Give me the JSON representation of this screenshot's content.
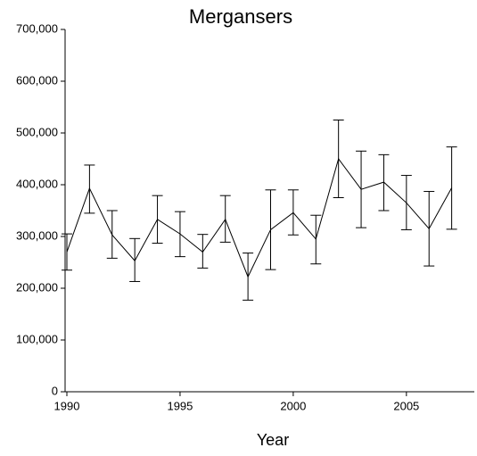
{
  "chart_data": {
    "type": "line",
    "title": "Mergansers",
    "x_label": "Year",
    "x": [
      1990,
      1991,
      1992,
      1993,
      1994,
      1995,
      1996,
      1997,
      1998,
      1999,
      2000,
      2001,
      2002,
      2003,
      2004,
      2005,
      2006,
      2007
    ],
    "series": [
      {
        "color": "#000000",
        "values": [
          270000,
          393000,
          303000,
          253000,
          333000,
          305000,
          270000,
          333000,
          222000,
          313000,
          346000,
          295000,
          450000,
          391000,
          405000,
          365000,
          315000,
          394000
        ],
        "lower": [
          235000,
          345000,
          258000,
          213000,
          287000,
          261000,
          239000,
          289000,
          177000,
          236000,
          303000,
          247000,
          375000,
          317000,
          350000,
          313000,
          243000,
          314000
        ],
        "upper": [
          305000,
          438000,
          350000,
          296000,
          379000,
          348000,
          304000,
          379000,
          268000,
          390000,
          390000,
          341000,
          525000,
          465000,
          458000,
          418000,
          387000,
          473000
        ]
      }
    ],
    "xlim": [
      1990,
      2008
    ],
    "xticks": [
      1990,
      1995,
      2000,
      2005
    ],
    "ylim": [
      0,
      700000
    ],
    "yticks": [
      0,
      {
        "value": 100000,
        "label": "100,000"
      },
      {
        "value": 200000,
        "label": "200,000"
      },
      {
        "value": 300000,
        "label": "300,000"
      },
      {
        "value": 400000,
        "label": "400,000"
      },
      {
        "value": 500000,
        "label": "500,000"
      },
      {
        "value": 600000,
        "label": "600,000"
      },
      {
        "value": 700000,
        "label": "700,000"
      }
    ]
  }
}
